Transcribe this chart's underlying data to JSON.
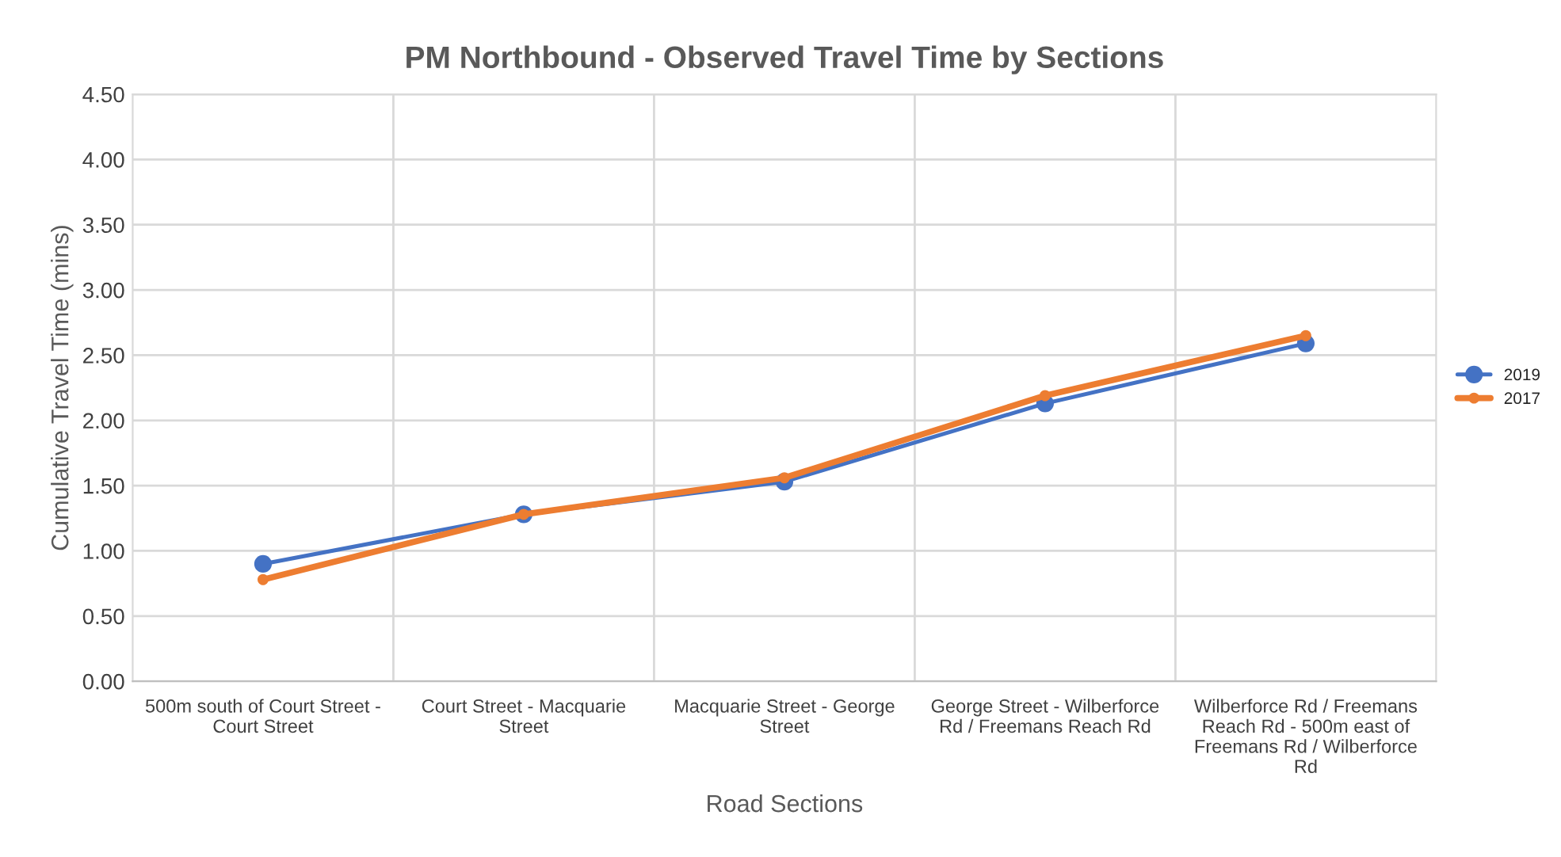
{
  "chart_data": {
    "type": "line",
    "title": "PM Northbound - Observed Travel Time by Sections",
    "xlabel": "Road Sections",
    "ylabel": "Cumulative Travel Time (mins)",
    "categories": [
      "500m south of Court Street -\nCourt Street",
      "Court Street - Macquarie\nStreet",
      "Macquarie Street - George\nStreet",
      "George Street - Wilberforce\nRd / Freemans Reach Rd",
      "Wilberforce Rd / Freemans\nReach Rd - 500m east of\nFreemans Rd / Wilberforce\nRd"
    ],
    "series": [
      {
        "name": "2019",
        "color": "#4472c4",
        "values": [
          0.9,
          1.28,
          1.53,
          2.13,
          2.59
        ]
      },
      {
        "name": "2017",
        "color": "#ed7d31",
        "values": [
          0.78,
          1.28,
          1.56,
          2.19,
          2.65
        ]
      }
    ],
    "ylim": [
      0,
      4.5
    ],
    "yticks": [
      {
        "value": 0,
        "label": "0.00"
      },
      {
        "value": 0.5,
        "label": "0.50"
      },
      {
        "value": 1,
        "label": "1.00"
      },
      {
        "value": 1.5,
        "label": "1.50"
      },
      {
        "value": 2,
        "label": "2.00"
      },
      {
        "value": 2.5,
        "label": "2.50"
      },
      {
        "value": 3,
        "label": "3.00"
      },
      {
        "value": 3.5,
        "label": "3.50"
      },
      {
        "value": 4,
        "label": "4.00"
      },
      {
        "value": 4.5,
        "label": "4.50"
      }
    ],
    "grid": true,
    "legend": "right",
    "marker": "circle",
    "line_style": "solid"
  }
}
